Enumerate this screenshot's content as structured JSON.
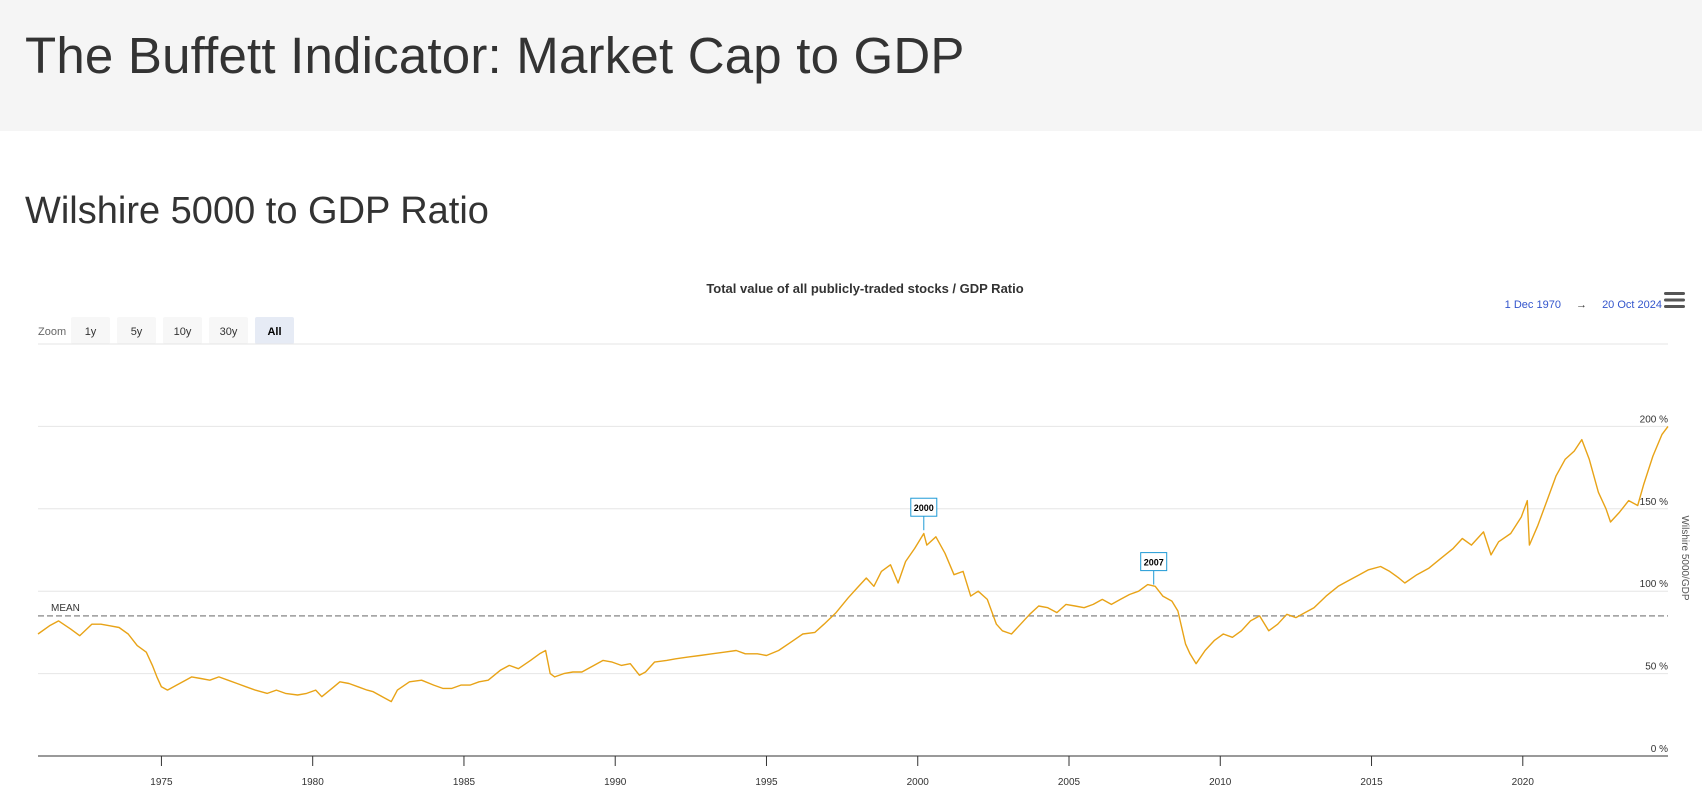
{
  "header": {
    "title": "The Buffett Indicator: Market Cap to GDP"
  },
  "section": {
    "title": "Wilshire 5000 to GDP Ratio"
  },
  "colors": {
    "series": "#e8a317",
    "grid": "#e6e6e6",
    "range_button_bg": "#f7f7f7",
    "range_button_active_bg": "#e6ebf5",
    "date_range_text": "#3355cc",
    "flag_border": "#1e9ad6"
  },
  "controls": {
    "zoom_label": "Zoom",
    "range_buttons": [
      {
        "label": "1y",
        "active": false
      },
      {
        "label": "5y",
        "active": false
      },
      {
        "label": "10y",
        "active": false
      },
      {
        "label": "30y",
        "active": false
      },
      {
        "label": "All",
        "active": true
      }
    ],
    "date_from": "1 Dec 1970",
    "date_arrow": "→",
    "date_to": "20 Oct 2024",
    "menu_icon": "hamburger-menu-icon"
  },
  "chart_data": {
    "type": "line",
    "title": "Total value of all publicly-traded stocks / GDP Ratio",
    "ylabel": "Wilshire 5000/GDP",
    "xlabel": "",
    "xlim": [
      1970.92,
      2024.8
    ],
    "ylim": [
      0,
      250
    ],
    "y_ticks": [
      0,
      50,
      100,
      150,
      200
    ],
    "y_tick_labels": [
      "0 %",
      "50 %",
      "100 %",
      "150 %",
      "200 %"
    ],
    "x_ticks": [
      1975,
      1980,
      1985,
      1990,
      1995,
      2000,
      2005,
      2010,
      2015,
      2020
    ],
    "x_tick_labels": [
      "1975",
      "1980",
      "1985",
      "1990",
      "1995",
      "2000",
      "2005",
      "2010",
      "2015",
      "2020"
    ],
    "grid": true,
    "mean_line": {
      "label": "MEAN",
      "value": 85
    },
    "annotations": [
      {
        "label": "2000",
        "x": 2000.2,
        "y": 137
      },
      {
        "label": "2007",
        "x": 2007.8,
        "y": 104
      }
    ],
    "series": [
      {
        "points": [
          [
            1970.92,
            74
          ],
          [
            1971.3,
            79
          ],
          [
            1971.6,
            82
          ],
          [
            1972.0,
            77
          ],
          [
            1972.3,
            73
          ],
          [
            1972.7,
            80
          ],
          [
            1973.0,
            80
          ],
          [
            1973.3,
            79
          ],
          [
            1973.6,
            78
          ],
          [
            1973.9,
            74
          ],
          [
            1974.2,
            67
          ],
          [
            1974.5,
            63
          ],
          [
            1974.7,
            55
          ],
          [
            1974.85,
            48
          ],
          [
            1975.0,
            42
          ],
          [
            1975.2,
            40
          ],
          [
            1975.5,
            43
          ],
          [
            1975.8,
            46
          ],
          [
            1976.0,
            48
          ],
          [
            1976.3,
            47
          ],
          [
            1976.6,
            46
          ],
          [
            1976.9,
            48
          ],
          [
            1977.2,
            46
          ],
          [
            1977.5,
            44
          ],
          [
            1977.8,
            42
          ],
          [
            1978.1,
            40
          ],
          [
            1978.5,
            38
          ],
          [
            1978.8,
            40
          ],
          [
            1979.1,
            38
          ],
          [
            1979.5,
            37
          ],
          [
            1979.8,
            38
          ],
          [
            1980.1,
            40
          ],
          [
            1980.3,
            36
          ],
          [
            1980.7,
            42
          ],
          [
            1980.9,
            45
          ],
          [
            1981.2,
            44
          ],
          [
            1981.5,
            42
          ],
          [
            1981.8,
            40
          ],
          [
            1982.0,
            39
          ],
          [
            1982.3,
            36
          ],
          [
            1982.6,
            33
          ],
          [
            1982.8,
            40
          ],
          [
            1983.2,
            45
          ],
          [
            1983.6,
            46
          ],
          [
            1984.0,
            43
          ],
          [
            1984.3,
            41
          ],
          [
            1984.6,
            41
          ],
          [
            1984.9,
            43
          ],
          [
            1985.2,
            43
          ],
          [
            1985.5,
            45
          ],
          [
            1985.8,
            46
          ],
          [
            1986.2,
            52
          ],
          [
            1986.5,
            55
          ],
          [
            1986.8,
            53
          ],
          [
            1987.2,
            58
          ],
          [
            1987.5,
            62
          ],
          [
            1987.7,
            64
          ],
          [
            1987.85,
            50
          ],
          [
            1988.0,
            48
          ],
          [
            1988.3,
            50
          ],
          [
            1988.6,
            51
          ],
          [
            1988.9,
            51
          ],
          [
            1989.3,
            55
          ],
          [
            1989.6,
            58
          ],
          [
            1989.9,
            57
          ],
          [
            1990.2,
            55
          ],
          [
            1990.5,
            56
          ],
          [
            1990.8,
            49
          ],
          [
            1991.0,
            51
          ],
          [
            1991.3,
            57
          ],
          [
            1991.7,
            58
          ],
          [
            1992.0,
            59
          ],
          [
            1992.4,
            60
          ],
          [
            1992.8,
            61
          ],
          [
            1993.2,
            62
          ],
          [
            1993.6,
            63
          ],
          [
            1994.0,
            64
          ],
          [
            1994.3,
            62
          ],
          [
            1994.7,
            62
          ],
          [
            1995.0,
            61
          ],
          [
            1995.4,
            64
          ],
          [
            1995.8,
            69
          ],
          [
            1996.2,
            74
          ],
          [
            1996.6,
            75
          ],
          [
            1996.9,
            80
          ],
          [
            1997.3,
            87
          ],
          [
            1997.7,
            96
          ],
          [
            1998.0,
            102
          ],
          [
            1998.3,
            108
          ],
          [
            1998.55,
            103
          ],
          [
            1998.8,
            112
          ],
          [
            1999.1,
            116
          ],
          [
            1999.35,
            105
          ],
          [
            1999.6,
            118
          ],
          [
            1999.9,
            126
          ],
          [
            2000.2,
            135
          ],
          [
            2000.3,
            128
          ],
          [
            2000.6,
            133
          ],
          [
            2000.9,
            123
          ],
          [
            2001.2,
            110
          ],
          [
            2001.5,
            112
          ],
          [
            2001.75,
            97
          ],
          [
            2002.0,
            100
          ],
          [
            2002.3,
            95
          ],
          [
            2002.6,
            80
          ],
          [
            2002.8,
            76
          ],
          [
            2003.1,
            74
          ],
          [
            2003.4,
            80
          ],
          [
            2003.7,
            86
          ],
          [
            2004.0,
            91
          ],
          [
            2004.3,
            90
          ],
          [
            2004.6,
            87
          ],
          [
            2004.9,
            92
          ],
          [
            2005.2,
            91
          ],
          [
            2005.5,
            90
          ],
          [
            2005.8,
            92
          ],
          [
            2006.1,
            95
          ],
          [
            2006.4,
            92
          ],
          [
            2006.7,
            95
          ],
          [
            2007.0,
            98
          ],
          [
            2007.3,
            100
          ],
          [
            2007.6,
            104
          ],
          [
            2007.85,
            103
          ],
          [
            2008.1,
            97
          ],
          [
            2008.4,
            94
          ],
          [
            2008.6,
            88
          ],
          [
            2008.85,
            68
          ],
          [
            2009.0,
            62
          ],
          [
            2009.2,
            56
          ],
          [
            2009.5,
            64
          ],
          [
            2009.8,
            70
          ],
          [
            2010.1,
            74
          ],
          [
            2010.4,
            72
          ],
          [
            2010.7,
            76
          ],
          [
            2011.0,
            82
          ],
          [
            2011.3,
            85
          ],
          [
            2011.6,
            76
          ],
          [
            2011.9,
            80
          ],
          [
            2012.2,
            86
          ],
          [
            2012.5,
            84
          ],
          [
            2012.8,
            87
          ],
          [
            2013.1,
            90
          ],
          [
            2013.5,
            97
          ],
          [
            2013.9,
            103
          ],
          [
            2014.2,
            106
          ],
          [
            2014.6,
            110
          ],
          [
            2014.9,
            113
          ],
          [
            2015.3,
            115
          ],
          [
            2015.6,
            112
          ],
          [
            2015.9,
            108
          ],
          [
            2016.1,
            105
          ],
          [
            2016.5,
            110
          ],
          [
            2016.9,
            114
          ],
          [
            2017.3,
            120
          ],
          [
            2017.7,
            126
          ],
          [
            2018.0,
            132
          ],
          [
            2018.3,
            128
          ],
          [
            2018.7,
            136
          ],
          [
            2018.95,
            122
          ],
          [
            2019.2,
            130
          ],
          [
            2019.6,
            135
          ],
          [
            2019.95,
            145
          ],
          [
            2020.15,
            155
          ],
          [
            2020.22,
            128
          ],
          [
            2020.5,
            140
          ],
          [
            2020.8,
            155
          ],
          [
            2021.1,
            170
          ],
          [
            2021.4,
            180
          ],
          [
            2021.7,
            185
          ],
          [
            2021.95,
            192
          ],
          [
            2022.2,
            180
          ],
          [
            2022.5,
            160
          ],
          [
            2022.75,
            150
          ],
          [
            2022.9,
            142
          ],
          [
            2023.2,
            148
          ],
          [
            2023.5,
            155
          ],
          [
            2023.8,
            152
          ],
          [
            2024.0,
            165
          ],
          [
            2024.3,
            182
          ],
          [
            2024.6,
            195
          ],
          [
            2024.8,
            200
          ]
        ]
      }
    ]
  }
}
